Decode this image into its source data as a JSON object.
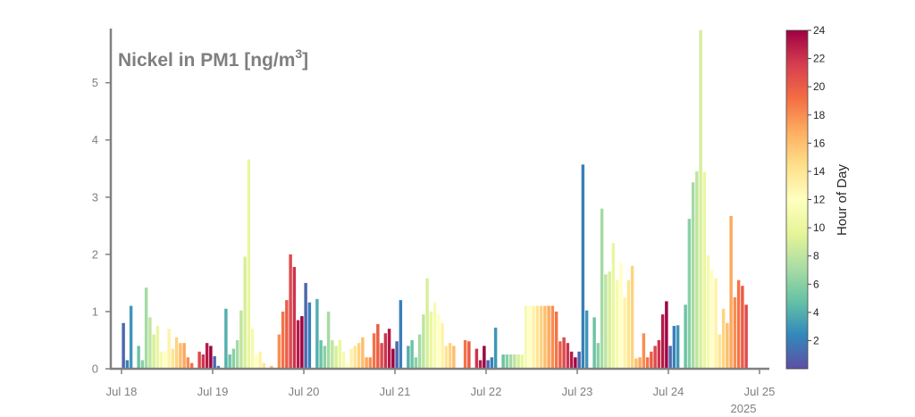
{
  "chart_data": {
    "type": "bar",
    "title": "Nickel in PM1 [ng/m3]",
    "title_main": "Nickel in PM1 [ng/m",
    "title_sup": "3",
    "title_end": "]",
    "ylim": [
      0,
      5.9
    ],
    "yticks": [
      "0",
      "1",
      "2",
      "3",
      "4",
      "5"
    ],
    "xlim_hours": [
      0,
      168
    ],
    "xticks": [
      "Jul 18",
      "Jul 19",
      "Jul 20",
      "Jul 21",
      "Jul 22",
      "Jul 23",
      "Jul 24",
      "Jul 25"
    ],
    "year_label": "2025",
    "colorbar": {
      "title": "Hour of Day",
      "ticks": [
        "2",
        "4",
        "6",
        "8",
        "10",
        "12",
        "14",
        "16",
        "18",
        "20",
        "22",
        "24"
      ],
      "colors": [
        "#5e4fa2",
        "#3288bd",
        "#66c2a5",
        "#abdda4",
        "#e6f598",
        "#ffffbf",
        "#fee08b",
        "#fdae61",
        "#f46d43",
        "#d53e4f",
        "#9e0142"
      ]
    },
    "x_start_date": "Jul 18",
    "values": [
      0.8,
      0.15,
      1.1,
      null,
      0.4,
      0.15,
      1.42,
      0.9,
      0.6,
      0.75,
      0.3,
      0.3,
      0.7,
      0.35,
      0.55,
      0.45,
      0.45,
      0.2,
      0.1,
      null,
      0.3,
      0.25,
      0.45,
      0.4,
      0.22,
      0.05,
      null,
      1.05,
      0.25,
      0.35,
      0.5,
      1.02,
      1.96,
      3.66,
      0.7,
      0.25,
      0.3,
      0.1,
      null,
      0.05,
      null,
      0.6,
      1.0,
      1.2,
      2.0,
      1.78,
      0.85,
      0.92,
      1.5,
      1.16,
      null,
      1.22,
      0.5,
      0.4,
      1.0,
      0.5,
      0.4,
      0.5,
      0.3,
      0.1,
      0.35,
      0.4,
      0.45,
      0.55,
      0.2,
      0.2,
      0.62,
      0.78,
      0.45,
      0.62,
      0.7,
      0.35,
      0.48,
      1.2,
      null,
      0.4,
      0.5,
      0.2,
      0.6,
      0.95,
      1.58,
      1.0,
      1.15,
      0.95,
      0.8,
      0.4,
      0.45,
      0.4,
      null,
      null,
      0.5,
      0.48,
      null,
      0.35,
      0.15,
      0.4,
      0.15,
      0.2,
      0.72,
      null,
      0.25,
      0.25,
      0.25,
      0.25,
      0.25,
      0.25,
      1.1,
      1.1,
      1.1,
      1.1,
      1.1,
      1.1,
      1.1,
      1.1,
      1.0,
      0.48,
      0.55,
      0.45,
      0.3,
      0.2,
      0.3,
      3.57,
      1.02,
      null,
      0.9,
      0.45,
      2.8,
      1.65,
      1.7,
      2.2,
      1.55,
      1.85,
      1.25,
      1.55,
      1.8,
      0.18,
      0.2,
      0.62,
      0.2,
      0.3,
      0.4,
      0.5,
      0.95,
      1.18,
      0.4,
      0.75,
      0.76,
      null,
      1.12,
      2.62,
      3.26,
      3.45,
      5.92,
      3.44,
      1.98,
      1.72,
      1.58,
      0.6,
      1.05,
      0.8,
      2.67,
      1.25,
      1.55,
      1.45,
      1.12
    ]
  }
}
